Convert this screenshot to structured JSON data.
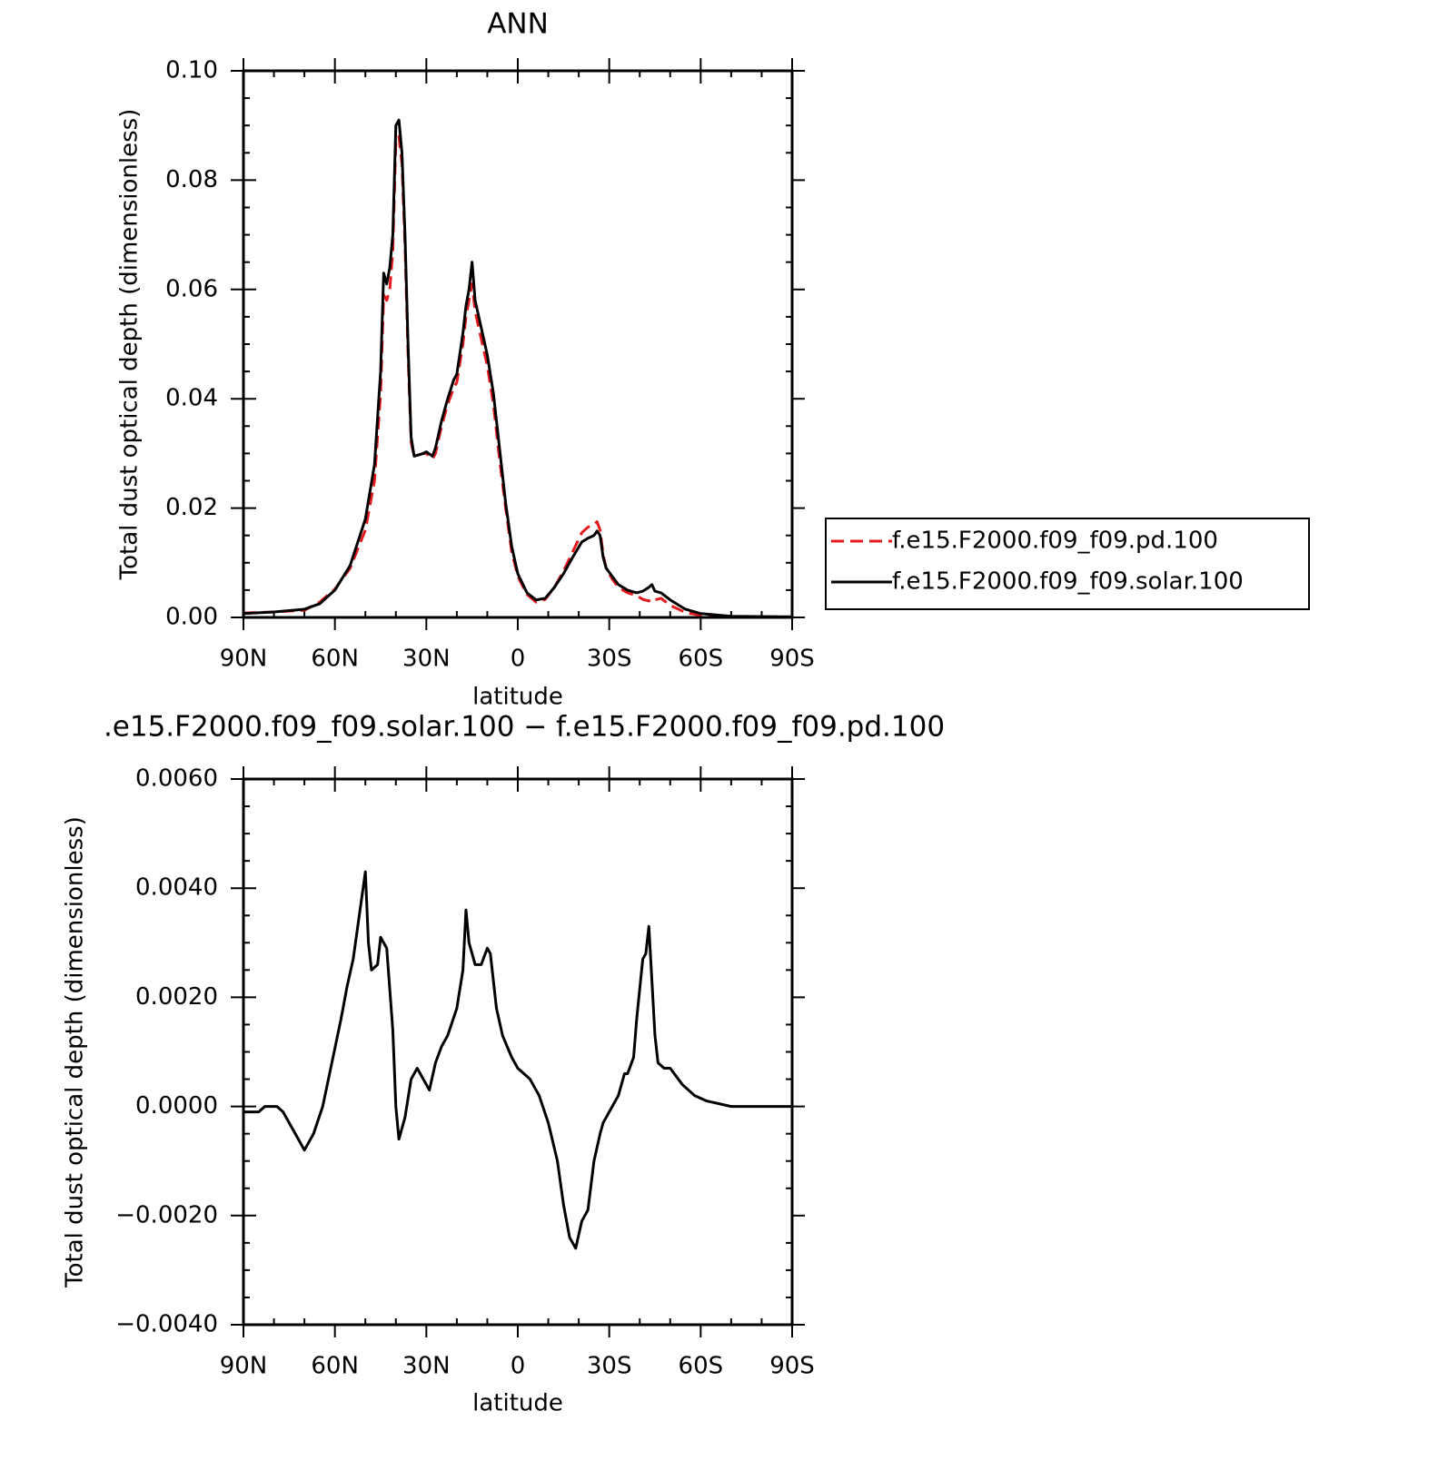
{
  "chart_data": [
    {
      "type": "line",
      "title": "ANN",
      "xlabel": "latitude",
      "ylabel": "Total dust optical depth (dimensionless)",
      "x": [
        90,
        80,
        70,
        65,
        60,
        55,
        50,
        47,
        45,
        44,
        43,
        42,
        41,
        40,
        39,
        38,
        37,
        36,
        35,
        34,
        31,
        30,
        28,
        27,
        25,
        23,
        21,
        20,
        18,
        17,
        16,
        15,
        14,
        12,
        10,
        8,
        6,
        4,
        2,
        0,
        -3,
        -6,
        -9,
        -12,
        -15,
        -18,
        -21,
        -23,
        -25,
        -26,
        -27,
        -28,
        -29,
        -31,
        -33,
        -36,
        -39,
        -41,
        -43,
        -44,
        -45,
        -47,
        -50,
        -55,
        -60,
        -70,
        -90
      ],
      "series": [
        {
          "name": "f.e15.F2000.f09_f09.pd.100",
          "color": "#e41a1c",
          "line_style": "dashed",
          "values": [
            0.0008,
            0.001,
            0.0013,
            0.0028,
            0.0052,
            0.009,
            0.016,
            0.025,
            0.041,
            0.059,
            0.058,
            0.06,
            0.067,
            0.087,
            0.088,
            0.083,
            0.068,
            0.048,
            0.032,
            0.0295,
            0.03,
            0.03,
            0.029,
            0.03,
            0.035,
            0.039,
            0.042,
            0.043,
            0.05,
            0.055,
            0.058,
            0.061,
            0.056,
            0.051,
            0.046,
            0.039,
            0.029,
            0.02,
            0.012,
            0.0075,
            0.0042,
            0.0028,
            0.0033,
            0.0055,
            0.0085,
            0.012,
            0.0155,
            0.0165,
            0.017,
            0.0175,
            0.016,
            0.0115,
            0.009,
            0.007,
            0.0055,
            0.0045,
            0.004,
            0.0033,
            0.003,
            0.0035,
            0.0032,
            0.0035,
            0.0022,
            0.0009,
            0.0004,
            0.0001,
            0.0001
          ]
        },
        {
          "name": "f.e15.F2000.f09_f09.solar.100",
          "color": "#000000",
          "line_style": "solid",
          "values": [
            0.0007,
            0.001,
            0.0015,
            0.0025,
            0.005,
            0.0095,
            0.018,
            0.028,
            0.045,
            0.063,
            0.061,
            0.064,
            0.07,
            0.09,
            0.091,
            0.085,
            0.07,
            0.05,
            0.033,
            0.0295,
            0.03,
            0.0303,
            0.0295,
            0.031,
            0.036,
            0.04,
            0.0435,
            0.0445,
            0.052,
            0.057,
            0.06,
            0.065,
            0.058,
            0.053,
            0.048,
            0.041,
            0.031,
            0.021,
            0.013,
            0.008,
            0.0045,
            0.0032,
            0.0035,
            0.0055,
            0.008,
            0.011,
            0.0138,
            0.0145,
            0.015,
            0.0158,
            0.015,
            0.011,
            0.009,
            0.0075,
            0.006,
            0.005,
            0.0045,
            0.0048,
            0.0055,
            0.006,
            0.0048,
            0.0045,
            0.0032,
            0.0015,
            0.0007,
            0.0002,
            0.0001
          ]
        }
      ],
      "xlim": [
        90,
        -90
      ],
      "xticks": [
        {
          "value": 90,
          "label": "90N"
        },
        {
          "value": 60,
          "label": "60N"
        },
        {
          "value": 30,
          "label": "30N"
        },
        0,
        {
          "value": -30,
          "label": "30S"
        },
        {
          "value": -60,
          "label": "60S"
        },
        {
          "value": -90,
          "label": "90S"
        }
      ],
      "ylim": [
        0,
        0.1
      ],
      "yticks": [
        {
          "value": 0,
          "label": "0.00"
        },
        {
          "value": 0.02,
          "label": "0.02"
        },
        {
          "value": 0.04,
          "label": "0.04"
        },
        {
          "value": 0.06,
          "label": "0.06"
        },
        {
          "value": 0.08,
          "label": "0.08"
        },
        {
          "value": 0.1,
          "label": "0.10"
        }
      ],
      "legend": "right"
    },
    {
      "type": "line",
      "title": ".e15.F2000.f09_f09.solar.100 − f.e15.F2000.f09_f09.pd.100",
      "xlabel": "latitude",
      "ylabel": "Total dust optical depth (dimensionless)",
      "x": [
        90,
        85,
        83,
        79,
        77,
        75,
        72,
        70,
        67,
        64,
        61,
        58,
        56,
        54,
        52,
        50,
        49,
        48,
        46,
        45,
        43,
        41,
        40,
        39,
        37,
        35,
        33,
        31,
        29,
        27,
        25,
        23,
        20,
        18,
        17,
        16,
        14,
        12,
        10,
        9,
        7,
        5,
        2,
        0,
        -2,
        -4,
        -7,
        -10,
        -13,
        -15,
        -17,
        -19,
        -21,
        -23,
        -25,
        -27,
        -28,
        -30,
        -33,
        -35,
        -36,
        -38,
        -39,
        -41,
        -42,
        -43,
        -45,
        -46,
        -48,
        -50,
        -54,
        -58,
        -62,
        -70,
        -80,
        -90
      ],
      "color": "#000000",
      "values": [
        -0.0001,
        -0.0001,
        0,
        0,
        -0.0001,
        -0.0003,
        -0.0006,
        -0.0008,
        -0.0005,
        0,
        0.0008,
        0.0016,
        0.0022,
        0.0027,
        0.0035,
        0.0043,
        0.003,
        0.0025,
        0.0026,
        0.0031,
        0.0029,
        0.0014,
        0,
        -0.0006,
        -0.0002,
        0.0005,
        0.0007,
        0.0005,
        0.0003,
        0.0008,
        0.0011,
        0.0013,
        0.0018,
        0.0025,
        0.0036,
        0.003,
        0.0026,
        0.0026,
        0.0029,
        0.0028,
        0.0018,
        0.0013,
        0.0009,
        0.0007,
        0.0006,
        0.0005,
        0.0002,
        -0.0003,
        -0.001,
        -0.0018,
        -0.0024,
        -0.0026,
        -0.0021,
        -0.0019,
        -0.001,
        -0.0005,
        -0.0003,
        -0.0001,
        0.0002,
        0.0006,
        0.0006,
        0.0009,
        0.0016,
        0.0027,
        0.0028,
        0.0033,
        0.0013,
        0.0008,
        0.0007,
        0.0007,
        0.0004,
        0.0002,
        0.0001,
        0,
        0,
        0
      ],
      "xlim": [
        90,
        -90
      ],
      "xticks": [
        {
          "value": 90,
          "label": "90N"
        },
        {
          "value": 60,
          "label": "60N"
        },
        {
          "value": 30,
          "label": "30N"
        },
        0,
        {
          "value": -30,
          "label": "30S"
        },
        {
          "value": -60,
          "label": "60S"
        },
        {
          "value": -90,
          "label": "90S"
        }
      ],
      "ylim": [
        -0.004,
        0.006
      ],
      "yticks": [
        {
          "value": -0.004,
          "label": "−0.0040"
        },
        {
          "value": -0.002,
          "label": "−0.0020"
        },
        {
          "value": 0,
          "label": "0.0000"
        },
        {
          "value": 0.002,
          "label": "0.0020"
        },
        {
          "value": 0.004,
          "label": "0.0040"
        },
        {
          "value": 0.006,
          "label": "0.0060"
        }
      ]
    }
  ]
}
